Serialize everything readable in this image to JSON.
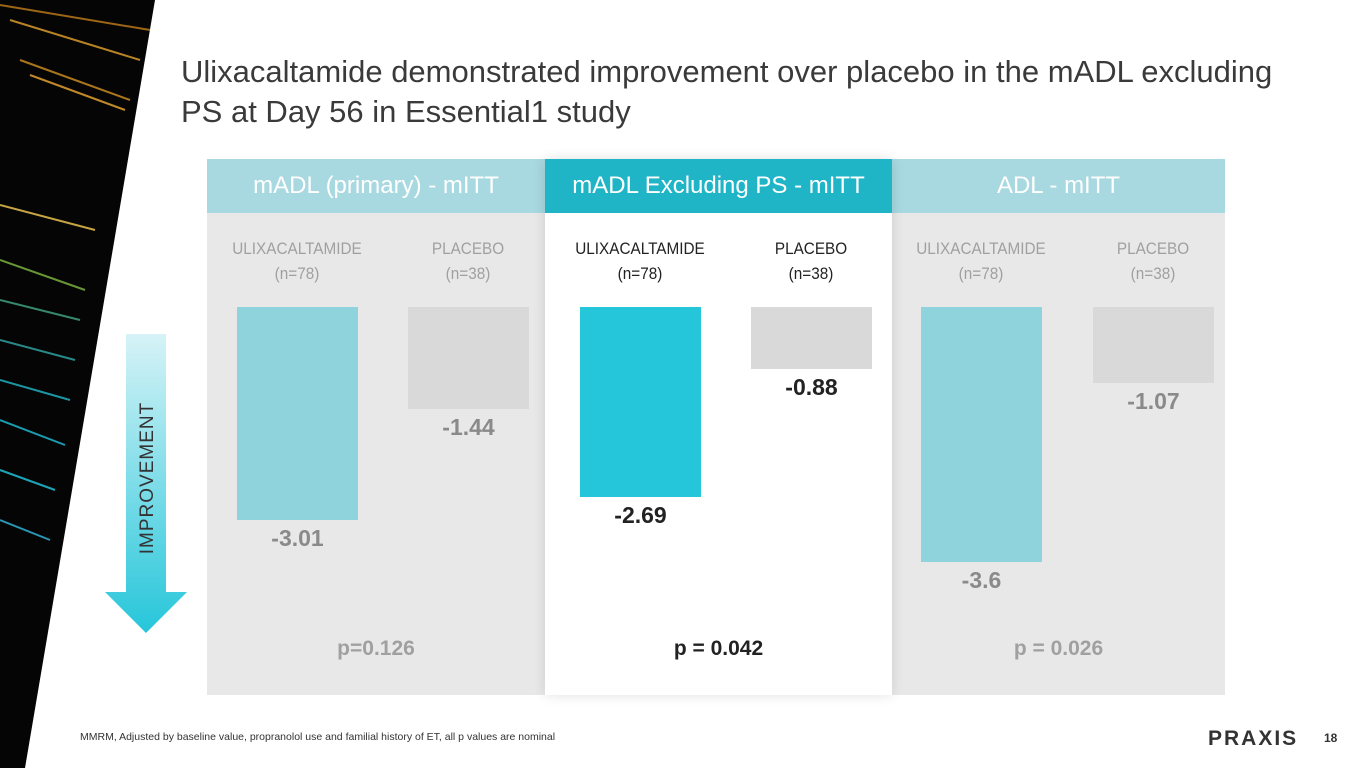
{
  "title": "Ulixacaltamide demonstrated improvement over placebo in the mADL excluding PS at Day 56 in Essential1 study",
  "axis_label": "IMPROVEMENT",
  "footnote": "MMRM, Adjusted by baseline value, propranolol use and familial history of ET, all p values are nominal",
  "logo": "PRAXIS",
  "page_number": "18",
  "colors": {
    "ulix_active": "#26c6da",
    "ulix_muted": "#8fd3dd",
    "placebo": "#d9d9d9",
    "header_active": "#1fb5c7",
    "header_muted": "#a8d8e0"
  },
  "chart_data": {
    "type": "bar",
    "ylim": [
      -3.8,
      0
    ],
    "panels": [
      {
        "title": "mADL (primary) - mITT",
        "active": false,
        "groups": [
          {
            "label": "ULIXACALTAMIDE",
            "n": "(n=78)",
            "value": -3.01,
            "display": "-3.01"
          },
          {
            "label": "PLACEBO",
            "n": "(n=38)",
            "value": -1.44,
            "display": "-1.44"
          }
        ],
        "p": "p=0.126"
      },
      {
        "title": "mADL Excluding PS - mITT",
        "active": true,
        "groups": [
          {
            "label": "ULIXACALTAMIDE",
            "n": "(n=78)",
            "value": -2.69,
            "display": "-2.69"
          },
          {
            "label": "PLACEBO",
            "n": "(n=38)",
            "value": -0.88,
            "display": "-0.88"
          }
        ],
        "p": "p = 0.042"
      },
      {
        "title": "ADL - mITT",
        "active": false,
        "groups": [
          {
            "label": "ULIXACALTAMIDE",
            "n": "(n=78)",
            "value": -3.6,
            "display": "-3.6"
          },
          {
            "label": "PLACEBO",
            "n": "(n=38)",
            "value": -1.07,
            "display": "-1.07"
          }
        ],
        "p": "p = 0.026"
      }
    ]
  }
}
